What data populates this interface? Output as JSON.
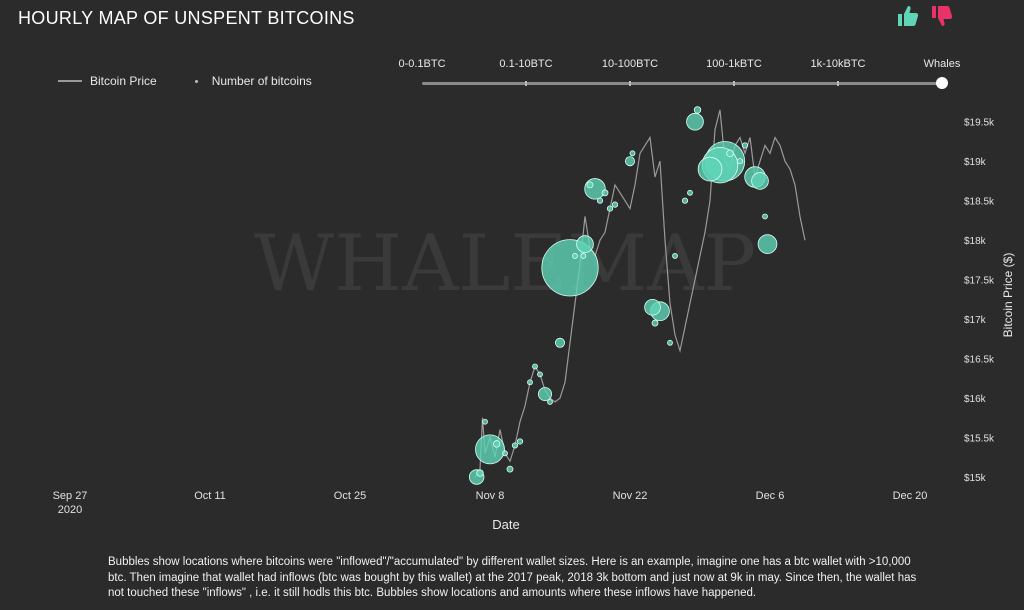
{
  "header": {
    "title": "HOURLY MAP OF UNSPENT BITCOINS",
    "like_icon": "thumbs-up-icon",
    "dislike_icon": "thumbs-down-icon",
    "like_color": "#5fd4b6",
    "dislike_color": "#e8326a"
  },
  "legend": {
    "price_label": "Bitcoin Price",
    "bubbles_label": "Number of bitcoins"
  },
  "slider": {
    "options": [
      "0-0.1BTC",
      "0.1-10BTC",
      "10-100BTC",
      "100-1kBTC",
      "1k-10kBTC",
      "Whales"
    ],
    "selected": "Whales"
  },
  "watermark": "WHALEMAP",
  "caption": "Bubbles show locations where bitcoins were \"inflowed\"/\"accumulated\" by different wallet sizes. Here is an example, imagine one has a btc wallet with >10,000 btc. Then imagine that wallet had inflows (btc was bought by this wallet) at the 2017 peak, 2018 3k bottom and just now at 9k in may. Since then, the wallet has not touched these \"inflows\" , i.e. it still hodls this btc. Bubbles show locations and amounts where these inflows have happened.",
  "chart_data": {
    "type": "scatter",
    "title": "HOURLY MAP OF UNSPENT BITCOINS",
    "xlabel": "Date",
    "ylabel": "Bitcoin Price ($)",
    "x_ticks": [
      {
        "date": "2020-09-27",
        "line1": "Sep 27",
        "line2": "2020"
      },
      {
        "date": "2020-10-11",
        "line1": "Oct 11",
        "line2": ""
      },
      {
        "date": "2020-10-25",
        "line1": "Oct 25",
        "line2": ""
      },
      {
        "date": "2020-11-08",
        "line1": "Nov 8",
        "line2": ""
      },
      {
        "date": "2020-11-22",
        "line1": "Nov 22",
        "line2": ""
      },
      {
        "date": "2020-12-06",
        "line1": "Dec 6",
        "line2": ""
      },
      {
        "date": "2020-12-20",
        "line1": "Dec 20",
        "line2": ""
      }
    ],
    "xlim": [
      "2020-09-22",
      "2020-12-25"
    ],
    "y_ticks": [
      15000,
      15500,
      16000,
      16500,
      17000,
      17500,
      18000,
      18500,
      19000,
      19500
    ],
    "y_tick_labels": [
      "$15k",
      "$15.5k",
      "$16k",
      "$16.5k",
      "$17k",
      "$17.5k",
      "$18k",
      "$18.5k",
      "$19k",
      "$19.5k"
    ],
    "ylim": [
      15000,
      19750
    ],
    "grid": false,
    "legend_position": "top-left",
    "series": [
      {
        "name": "Bitcoin Price",
        "kind": "line",
        "color": "#9a9a9a",
        "points": [
          [
            "2020-11-06T12:00",
            15000
          ],
          [
            "2020-11-07T00:00",
            15100
          ],
          [
            "2020-11-07T06:00",
            15750
          ],
          [
            "2020-11-07T12:00",
            15300
          ],
          [
            "2020-11-08T00:00",
            15500
          ],
          [
            "2020-11-08T12:00",
            15250
          ],
          [
            "2020-11-09T00:00",
            15600
          ],
          [
            "2020-11-09T12:00",
            15300
          ],
          [
            "2020-11-10T00:00",
            15200
          ],
          [
            "2020-11-10T12:00",
            15400
          ],
          [
            "2020-11-11T00:00",
            15700
          ],
          [
            "2020-11-11T12:00",
            15900
          ],
          [
            "2020-11-12T00:00",
            16200
          ],
          [
            "2020-11-12T12:00",
            16400
          ],
          [
            "2020-11-13T00:00",
            16300
          ],
          [
            "2020-11-13T12:00",
            16100
          ],
          [
            "2020-11-14T00:00",
            16000
          ],
          [
            "2020-11-14T12:00",
            15950
          ],
          [
            "2020-11-15T00:00",
            16000
          ],
          [
            "2020-11-15T12:00",
            16200
          ],
          [
            "2020-11-16T00:00",
            16700
          ],
          [
            "2020-11-16T12:00",
            17200
          ],
          [
            "2020-11-17T00:00",
            17700
          ],
          [
            "2020-11-17T12:00",
            18300
          ],
          [
            "2020-11-18T00:00",
            17900
          ],
          [
            "2020-11-18T12:00",
            17800
          ],
          [
            "2020-11-19T00:00",
            18000
          ],
          [
            "2020-11-19T12:00",
            18100
          ],
          [
            "2020-11-20T00:00",
            18400
          ],
          [
            "2020-11-20T12:00",
            18700
          ],
          [
            "2020-11-21T00:00",
            18600
          ],
          [
            "2020-11-21T12:00",
            18500
          ],
          [
            "2020-11-22T00:00",
            18400
          ],
          [
            "2020-11-22T12:00",
            18700
          ],
          [
            "2020-11-23T00:00",
            19100
          ],
          [
            "2020-11-24T00:00",
            19300
          ],
          [
            "2020-11-24T12:00",
            18800
          ],
          [
            "2020-11-25T00:00",
            19000
          ],
          [
            "2020-11-25T12:00",
            18000
          ],
          [
            "2020-11-26T00:00",
            17200
          ],
          [
            "2020-11-26T12:00",
            16800
          ],
          [
            "2020-11-27T00:00",
            16600
          ],
          [
            "2020-11-27T12:00",
            16900
          ],
          [
            "2020-11-28T00:00",
            17200
          ],
          [
            "2020-11-28T12:00",
            17500
          ],
          [
            "2020-11-29T00:00",
            17800
          ],
          [
            "2020-11-29T12:00",
            18100
          ],
          [
            "2020-11-30T00:00",
            18500
          ],
          [
            "2020-11-30T12:00",
            19400
          ],
          [
            "2020-12-01T00:00",
            19650
          ],
          [
            "2020-12-01T12:00",
            19000
          ],
          [
            "2020-12-02T00:00",
            18900
          ],
          [
            "2020-12-02T12:00",
            19200
          ],
          [
            "2020-12-03T00:00",
            19300
          ],
          [
            "2020-12-03T12:00",
            19100
          ],
          [
            "2020-12-04T00:00",
            19300
          ],
          [
            "2020-12-04T12:00",
            18800
          ],
          [
            "2020-12-05T00:00",
            19000
          ],
          [
            "2020-12-05T12:00",
            19200
          ],
          [
            "2020-12-06T00:00",
            19100
          ],
          [
            "2020-12-06T12:00",
            19300
          ],
          [
            "2020-12-07T00:00",
            19200
          ],
          [
            "2020-12-07T12:00",
            19000
          ],
          [
            "2020-12-08T00:00",
            18900
          ],
          [
            "2020-12-08T12:00",
            18700
          ],
          [
            "2020-12-09T00:00",
            18300
          ],
          [
            "2020-12-09T12:00",
            18000
          ]
        ]
      },
      {
        "name": "Number of bitcoins",
        "kind": "bubble",
        "color": "#5fd4b6",
        "points": [
          {
            "date": "2020-11-06T16:00",
            "price": 15000,
            "btc": 300
          },
          {
            "date": "2020-11-07T00:00",
            "price": 15050,
            "btc": 60
          },
          {
            "date": "2020-11-07T12:00",
            "price": 15700,
            "btc": 20
          },
          {
            "date": "2020-11-08T00:00",
            "price": 15350,
            "btc": 1200
          },
          {
            "date": "2020-11-08T16:00",
            "price": 15420,
            "btc": 60
          },
          {
            "date": "2020-11-09T12:00",
            "price": 15300,
            "btc": 30
          },
          {
            "date": "2020-11-10T00:00",
            "price": 15100,
            "btc": 50
          },
          {
            "date": "2020-11-10T12:00",
            "price": 15400,
            "btc": 40
          },
          {
            "date": "2020-11-11T00:00",
            "price": 15450,
            "btc": 40
          },
          {
            "date": "2020-11-12T00:00",
            "price": 16200,
            "btc": 30
          },
          {
            "date": "2020-11-12T12:00",
            "price": 16400,
            "btc": 30
          },
          {
            "date": "2020-11-13T00:00",
            "price": 16300,
            "btc": 20
          },
          {
            "date": "2020-11-13T12:00",
            "price": 16050,
            "btc": 250
          },
          {
            "date": "2020-11-14T00:00",
            "price": 15950,
            "btc": 20
          },
          {
            "date": "2020-11-15T00:00",
            "price": 16700,
            "btc": 120
          },
          {
            "date": "2020-11-16T00:00",
            "price": 17650,
            "btc": 4500
          },
          {
            "date": "2020-11-16T12:00",
            "price": 17800,
            "btc": 30
          },
          {
            "date": "2020-11-17T12:00",
            "price": 17950,
            "btc": 400
          },
          {
            "date": "2020-11-17T08:00",
            "price": 17800,
            "btc": 30
          },
          {
            "date": "2020-11-18T12:00",
            "price": 18650,
            "btc": 600
          },
          {
            "date": "2020-11-18T00:00",
            "price": 18700,
            "btc": 50
          },
          {
            "date": "2020-11-19T00:00",
            "price": 18500,
            "btc": 40
          },
          {
            "date": "2020-11-19T12:00",
            "price": 18600,
            "btc": 50
          },
          {
            "date": "2020-11-20T00:00",
            "price": 18400,
            "btc": 40
          },
          {
            "date": "2020-11-20T12:00",
            "price": 18450,
            "btc": 40
          },
          {
            "date": "2020-11-22T00:00",
            "price": 19000,
            "btc": 120
          },
          {
            "date": "2020-11-22T06:00",
            "price": 19100,
            "btc": 30
          },
          {
            "date": "2020-11-24T06:00",
            "price": 17150,
            "btc": 350
          },
          {
            "date": "2020-11-25T00:00",
            "price": 17100,
            "btc": 500
          },
          {
            "date": "2020-11-24T12:00",
            "price": 16950,
            "btc": 50
          },
          {
            "date": "2020-11-26T00:00",
            "price": 16700,
            "btc": 30
          },
          {
            "date": "2020-11-26T12:00",
            "price": 17800,
            "btc": 30
          },
          {
            "date": "2020-11-27T12:00",
            "price": 18500,
            "btc": 40
          },
          {
            "date": "2020-11-28T00:00",
            "price": 18600,
            "btc": 30
          },
          {
            "date": "2020-11-28T12:00",
            "price": 19500,
            "btc": 400
          },
          {
            "date": "2020-11-28T18:00",
            "price": 19650,
            "btc": 60
          },
          {
            "date": "2020-11-30T00:00",
            "price": 18900,
            "btc": 800
          },
          {
            "date": "2020-12-01T00:00",
            "price": 18950,
            "btc": 1800
          },
          {
            "date": "2020-12-01T12:00",
            "price": 19000,
            "btc": 2200
          },
          {
            "date": "2020-12-02T00:00",
            "price": 19100,
            "btc": 60
          },
          {
            "date": "2020-12-03T00:00",
            "price": 19000,
            "btc": 40
          },
          {
            "date": "2020-12-03T12:00",
            "price": 19200,
            "btc": 40
          },
          {
            "date": "2020-12-04T12:00",
            "price": 18800,
            "btc": 600
          },
          {
            "date": "2020-12-05T00:00",
            "price": 18750,
            "btc": 400
          },
          {
            "date": "2020-12-05T12:00",
            "price": 18300,
            "btc": 30
          },
          {
            "date": "2020-12-05T18:00",
            "price": 17950,
            "btc": 500
          }
        ]
      }
    ]
  }
}
